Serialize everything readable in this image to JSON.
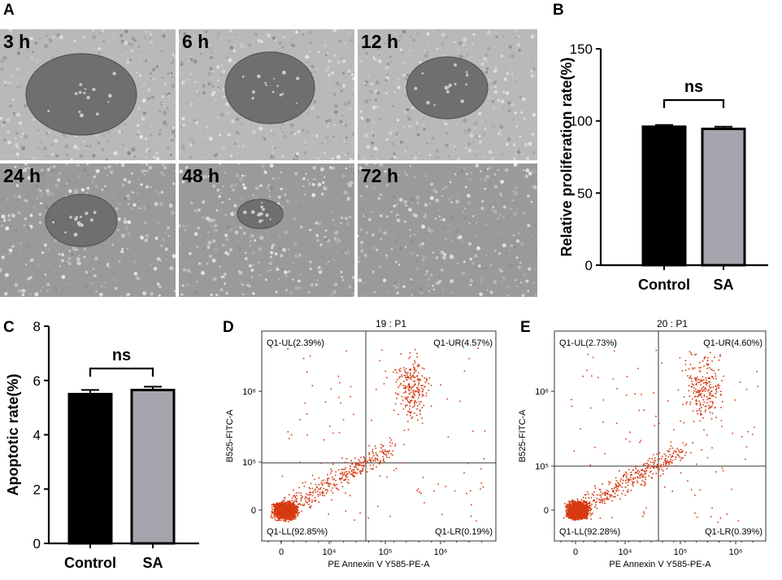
{
  "panels": {
    "A": "A",
    "B": "B",
    "C": "C",
    "D": "D",
    "E": "E"
  },
  "micrographs": [
    {
      "label": "3 h",
      "gap_level": 1.0
    },
    {
      "label": "6 h",
      "gap_level": 0.8
    },
    {
      "label": "12 h",
      "gap_level": 0.65
    },
    {
      "label": "24 h",
      "gap_level": 0.45
    },
    {
      "label": "48 h",
      "gap_level": 0.15
    },
    {
      "label": "72 h",
      "gap_level": 0.0
    }
  ],
  "chart_data": [
    {
      "type": "bar",
      "panel": "B",
      "categories": [
        "Control",
        "SA"
      ],
      "values": [
        96,
        94.5
      ],
      "errors": [
        1.2,
        1.5
      ],
      "colors": [
        "#000000",
        "#a6a5ad"
      ],
      "ylabel": "Relative proliferation rate(%)",
      "ylim": [
        0,
        150
      ],
      "yticks": [
        "0",
        "50",
        "100",
        "150"
      ],
      "significance": "ns"
    },
    {
      "type": "bar",
      "panel": "C",
      "categories": [
        "Control",
        "SA"
      ],
      "values": [
        5.5,
        5.65
      ],
      "errors": [
        0.15,
        0.12
      ],
      "colors": [
        "#000000",
        "#a6a5ad"
      ],
      "ylabel": "Apoptotic rate(%)",
      "ylim": [
        0,
        8
      ],
      "yticks": [
        "0",
        "2",
        "4",
        "6",
        "8"
      ],
      "significance": "ns"
    },
    {
      "type": "scatter",
      "panel": "D",
      "title": "19 : P1",
      "xlabel": "PE Annexin V Y585-PE-A",
      "ylabel": "B525-FITC-A",
      "xticks": [
        "0",
        "10⁴",
        "10⁵",
        "10⁶"
      ],
      "yticks": [
        "0",
        "10⁵",
        "10⁶"
      ],
      "quadrants": {
        "UL": "Q1-UL(2.39%)",
        "UR": "Q1-UR(4.57%)",
        "LL": "Q1-LL(92.85%)",
        "LR": "Q1-LR(0.19%)"
      },
      "point_color": "#d63a12"
    },
    {
      "type": "scatter",
      "panel": "E",
      "title": "20 : P1",
      "xlabel": "PE Annexin V Y585-PE-A",
      "ylabel": "B525-FITC-A",
      "xticks": [
        "0",
        "10⁴",
        "10⁵",
        "10⁶"
      ],
      "yticks": [
        "0",
        "10⁵",
        "10⁶"
      ],
      "quadrants": {
        "UL": "Q1-UL(2.73%)",
        "UR": "Q1-UR(4.60%)",
        "LL": "Q1-LL(92.28%)",
        "LR": "Q1-LR(0.39%)"
      },
      "point_color": "#d63a12"
    }
  ]
}
